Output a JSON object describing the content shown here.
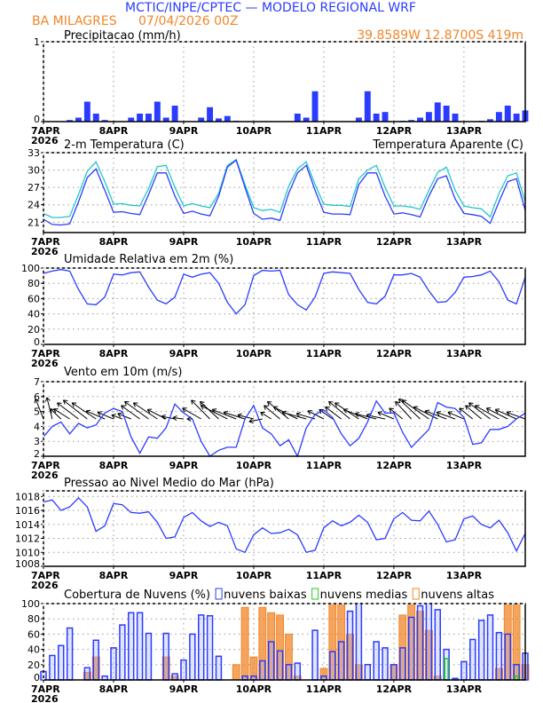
{
  "header": {
    "title": "MCTIC/INPE/CPTEC — MODELO REGIONAL WRF",
    "station": "BA MILAGRES",
    "run": "07/04/2026 00Z",
    "location": "39.8589W 12.8700S 419m"
  },
  "colors": {
    "blue": "#2a3cff",
    "cyan": "#20c8c8",
    "orange": "#f0862a",
    "green": "#22cc22",
    "title_blue": "#2a3cff",
    "title_orange": "#f0862a"
  },
  "x_axis": {
    "labels": [
      "7APR",
      "8APR",
      "9APR",
      "10APR",
      "11APR",
      "12APR",
      "13APR"
    ],
    "year": "2026",
    "step_hours": 3,
    "range_hours": [
      0,
      165
    ]
  },
  "chart_data": [
    {
      "type": "bar",
      "title": "Precipitacao (mm/h)",
      "ylim": [
        0,
        1
      ],
      "yticks": [
        0,
        1
      ],
      "values": [
        0,
        0,
        0,
        0.02,
        0.05,
        0.25,
        0.1,
        0.02,
        0,
        0,
        0.05,
        0.1,
        0.1,
        0.25,
        0.05,
        0.2,
        0,
        0,
        0.05,
        0.18,
        0.04,
        0.07,
        0.01,
        0,
        0,
        0,
        0,
        0,
        0,
        0.1,
        0.05,
        0.38,
        0,
        0,
        0,
        0,
        0.05,
        0.38,
        0.1,
        0.12,
        0,
        0.01,
        0.02,
        0.05,
        0.12,
        0.24,
        0.2,
        0.1,
        0,
        0,
        0.01,
        0.03,
        0.12,
        0.2,
        0.1,
        0.14
      ]
    },
    {
      "type": "line",
      "title": "2-m Temperatura (C)",
      "legend2": "Temperatura Aparente (C)",
      "ylim": [
        19.2,
        33
      ],
      "yticks": [
        21,
        24,
        27,
        30,
        33
      ],
      "series": [
        {
          "name": "2-m Temperatura (C)",
          "values": [
            21.5,
            20.6,
            20.5,
            20.7,
            24.5,
            28.7,
            30.2,
            26.5,
            22.7,
            22.8,
            22.5,
            22.3,
            25.8,
            29.5,
            29.5,
            25.5,
            22.5,
            22.9,
            22.4,
            22.1,
            25.5,
            30.5,
            31.7,
            27.0,
            22.5,
            21.5,
            21.7,
            21.3,
            26.0,
            29.5,
            30.8,
            26.5,
            22.7,
            22.4,
            22.4,
            22.3,
            27.5,
            29.5,
            29.5,
            25.5,
            22.4,
            22.6,
            22.3,
            21.9,
            25.5,
            28.5,
            29.0,
            25.0,
            22.5,
            22.3,
            22.0,
            20.8,
            24.5,
            28.0,
            28.5,
            23.0
          ]
        },
        {
          "name": "Temperatura Aparente (C)",
          "values": [
            22.5,
            21.8,
            21.8,
            22.0,
            25.8,
            29.8,
            31.4,
            28.0,
            24.1,
            24.2,
            23.9,
            23.8,
            26.8,
            30.6,
            30.8,
            27.0,
            23.8,
            24.2,
            23.8,
            23.5,
            26.0,
            30.8,
            31.8,
            27.5,
            23.5,
            23.0,
            23.2,
            22.7,
            27.2,
            30.2,
            31.4,
            27.5,
            24.1,
            23.9,
            23.9,
            23.7,
            28.5,
            30.0,
            30.8,
            27.0,
            23.8,
            23.8,
            23.6,
            23.2,
            26.5,
            29.6,
            30.5,
            26.5,
            23.8,
            23.5,
            23.3,
            21.9,
            26.0,
            29.0,
            29.5,
            24.5
          ]
        }
      ]
    },
    {
      "type": "line",
      "title": "Umidade Relativa em 2m (%)",
      "ylim": [
        0,
        100
      ],
      "yticks": [
        0,
        20,
        40,
        60,
        80,
        100
      ],
      "values": [
        93,
        96,
        98,
        96,
        72,
        53,
        52,
        62,
        92,
        91,
        94,
        95,
        75,
        58,
        53,
        62,
        92,
        88,
        92,
        94,
        80,
        55,
        40,
        52,
        90,
        97,
        96,
        97,
        65,
        52,
        45,
        62,
        93,
        95,
        94,
        93,
        72,
        55,
        53,
        63,
        91,
        91,
        93,
        88,
        70,
        55,
        56,
        68,
        88,
        89,
        91,
        96,
        82,
        58,
        53,
        88
      ]
    },
    {
      "type": "line",
      "title": "Vento em 10m (m/s)",
      "ylim": [
        2,
        7
      ],
      "yticks": [
        2,
        3,
        4,
        5,
        6,
        7
      ],
      "values": [
        3.3,
        4.0,
        4.3,
        3.5,
        4.2,
        3.9,
        4.1,
        4.9,
        5.2,
        5.0,
        3.3,
        2.2,
        3.3,
        3.2,
        3.9,
        5.5,
        4.9,
        4.5,
        3.0,
        1.9,
        2.4,
        2.6,
        2.6,
        4.5,
        5.4,
        3.9,
        3.5,
        2.7,
        3.1,
        2.0,
        3.9,
        4.8,
        5.1,
        4.6,
        3.5,
        2.7,
        3.2,
        4.3,
        5.7,
        4.9,
        4.9,
        3.6,
        2.6,
        3.2,
        3.8,
        5.6,
        5.3,
        5.2,
        4.6,
        2.8,
        2.9,
        3.8,
        3.8,
        4.0,
        4.5,
        4.9
      ],
      "vector_u": [
        -1.5,
        -1.0,
        -2.0,
        -3.0,
        -4.0,
        -4.5,
        -4.5,
        -3.5,
        -3.0,
        -2.0,
        -2.5,
        -3.5,
        -4.5,
        -4.5,
        -3.5,
        -2.5,
        -2.0,
        -1.0,
        -3.5,
        -3.5,
        -3.5,
        -5.0,
        -4.5,
        -4.0,
        -3.0,
        -2.5,
        -2.0,
        -3.0,
        -4.0,
        -4.5,
        -4.5,
        -3.5,
        -3.0,
        -2.5,
        -3.0,
        -4.0,
        -4.5,
        -4.5,
        -4.0,
        -3.5,
        -3.0,
        -2.5,
        -3.0,
        -4.0,
        -5.0,
        -4.5,
        -4.0,
        -3.5,
        -3.0,
        -2.5,
        -3.0,
        -4.0,
        -4.5,
        -4.0,
        -4.0,
        -3.5
      ],
      "vector_v": [
        3.0,
        3.2,
        1.5,
        1.5,
        2.4,
        2.8,
        2.4,
        1.2,
        1.0,
        0.6,
        0.8,
        2.0,
        2.6,
        2.4,
        1.4,
        0.4,
        0.2,
        0.0,
        1.6,
        2.8,
        2.6,
        2.0,
        1.4,
        1.0,
        0.6,
        -0.4,
        1.0,
        2.0,
        2.6,
        1.8,
        1.0,
        0.8,
        1.2,
        1.4,
        1.8,
        2.6,
        2.4,
        1.4,
        0.8,
        0.6,
        1.0,
        1.6,
        2.6,
        3.0,
        2.8,
        1.8,
        1.2,
        1.0,
        1.0,
        1.6,
        2.0,
        2.4,
        2.0,
        1.6,
        1.4,
        1.0
      ]
    },
    {
      "type": "line",
      "title": "Pressao ao Nivel Medio do Mar (hPa)",
      "ylim": [
        1008,
        1018.8
      ],
      "yticks": [
        1008,
        1010,
        1012,
        1014,
        1016,
        1018
      ],
      "values": [
        1017.2,
        1017.5,
        1016.0,
        1016.5,
        1017.8,
        1016.5,
        1013.0,
        1013.8,
        1017.0,
        1016.8,
        1015.7,
        1015.6,
        1015.8,
        1014.3,
        1012.0,
        1012.2,
        1015.0,
        1015.7,
        1014.5,
        1013.7,
        1014.3,
        1013.8,
        1010.5,
        1010.0,
        1012.5,
        1013.5,
        1012.7,
        1012.8,
        1013.3,
        1012.5,
        1010.0,
        1010.3,
        1013.5,
        1014.5,
        1013.8,
        1014.3,
        1015.3,
        1014.3,
        1011.8,
        1012.0,
        1014.8,
        1015.7,
        1014.6,
        1014.5,
        1015.9,
        1014.0,
        1011.5,
        1011.8,
        1014.8,
        1015.2,
        1014.0,
        1013.5,
        1014.6,
        1012.8,
        1010.2,
        1012.7
      ]
    },
    {
      "type": "bar",
      "title": "Cobertura de Nuvens (%)",
      "ylim": [
        0,
        100
      ],
      "yticks": [
        0,
        20,
        40,
        60,
        80,
        100
      ],
      "series": [
        {
          "name": "nuvens baixas",
          "values": [
            11,
            32,
            45,
            68,
            0,
            16,
            52,
            5,
            42,
            72,
            88,
            88,
            61,
            0,
            61,
            8,
            26,
            60,
            85,
            84,
            31,
            0,
            0,
            5,
            5,
            25,
            50,
            38,
            20,
            22,
            0,
            65,
            5,
            37,
            50,
            90,
            100,
            20,
            50,
            42,
            20,
            42,
            82,
            97,
            100,
            92,
            40,
            2,
            24,
            53,
            78,
            85,
            62,
            60,
            20,
            35
          ]
        },
        {
          "name": "nuvens medias",
          "values": [
            0,
            0,
            0,
            0,
            0,
            0,
            0,
            0,
            0,
            0,
            0,
            0,
            0,
            0,
            0,
            0,
            0,
            0,
            0,
            0,
            0,
            0,
            0,
            0,
            0,
            0,
            0,
            0,
            0,
            0,
            0,
            0,
            0,
            0,
            0,
            0,
            0,
            0,
            0,
            0,
            0,
            0,
            0,
            0,
            0,
            0,
            28,
            0,
            0,
            0,
            0,
            0,
            0,
            0,
            5,
            0
          ]
        },
        {
          "name": "nuvens altas",
          "values": [
            0,
            0,
            0,
            0,
            0,
            10,
            30,
            0,
            0,
            0,
            0,
            0,
            0,
            0,
            30,
            5,
            0,
            0,
            0,
            0,
            0,
            0,
            20,
            95,
            30,
            95,
            88,
            85,
            60,
            5,
            0,
            0,
            15,
            100,
            100,
            60,
            20,
            0,
            0,
            0,
            20,
            85,
            100,
            90,
            65,
            5,
            0,
            0,
            0,
            0,
            0,
            0,
            15,
            100,
            100,
            20
          ]
        }
      ]
    }
  ]
}
